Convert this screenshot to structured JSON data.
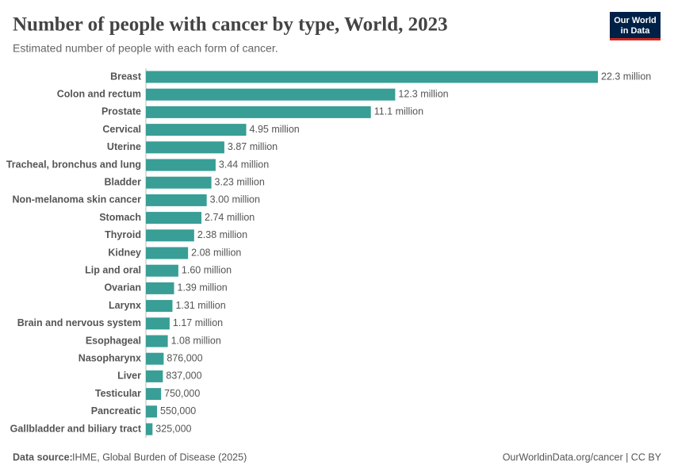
{
  "chart_data": {
    "type": "bar",
    "orientation": "horizontal",
    "title": "Number of people with cancer by type, World, 2023",
    "subtitle": "Estimated number of people with each form of cancer.",
    "logo": [
      "Our World",
      "in Data"
    ],
    "source_label": "Data source:",
    "source": "IHME, Global Burden of Disease (2025)",
    "credit": "OurWorldinData.org/cancer | CC BY",
    "color": "#389e96",
    "categories": [
      "Breast",
      "Colon and rectum",
      "Prostate",
      "Cervical",
      "Uterine",
      "Tracheal, bronchus and lung",
      "Bladder",
      "Non-melanoma skin cancer",
      "Stomach",
      "Thyroid",
      "Kidney",
      "Lip and oral",
      "Ovarian",
      "Larynx",
      "Brain and nervous system",
      "Esophageal",
      "Nasopharynx",
      "Liver",
      "Testicular",
      "Pancreatic",
      "Gallbladder and biliary tract"
    ],
    "values": [
      22300000,
      12300000,
      11100000,
      4950000,
      3870000,
      3440000,
      3230000,
      3000000,
      2740000,
      2380000,
      2080000,
      1600000,
      1390000,
      1310000,
      1170000,
      1080000,
      876000,
      837000,
      750000,
      550000,
      325000
    ],
    "value_labels": [
      "22.3 million",
      "12.3 million",
      "11.1 million",
      "4.95 million",
      "3.87 million",
      "3.44 million",
      "3.23 million",
      "3.00 million",
      "2.74 million",
      "2.38 million",
      "2.08 million",
      "1.60 million",
      "1.39 million",
      "1.31 million",
      "1.17 million",
      "1.08 million",
      "876,000",
      "837,000",
      "750,000",
      "550,000",
      "325,000"
    ]
  }
}
